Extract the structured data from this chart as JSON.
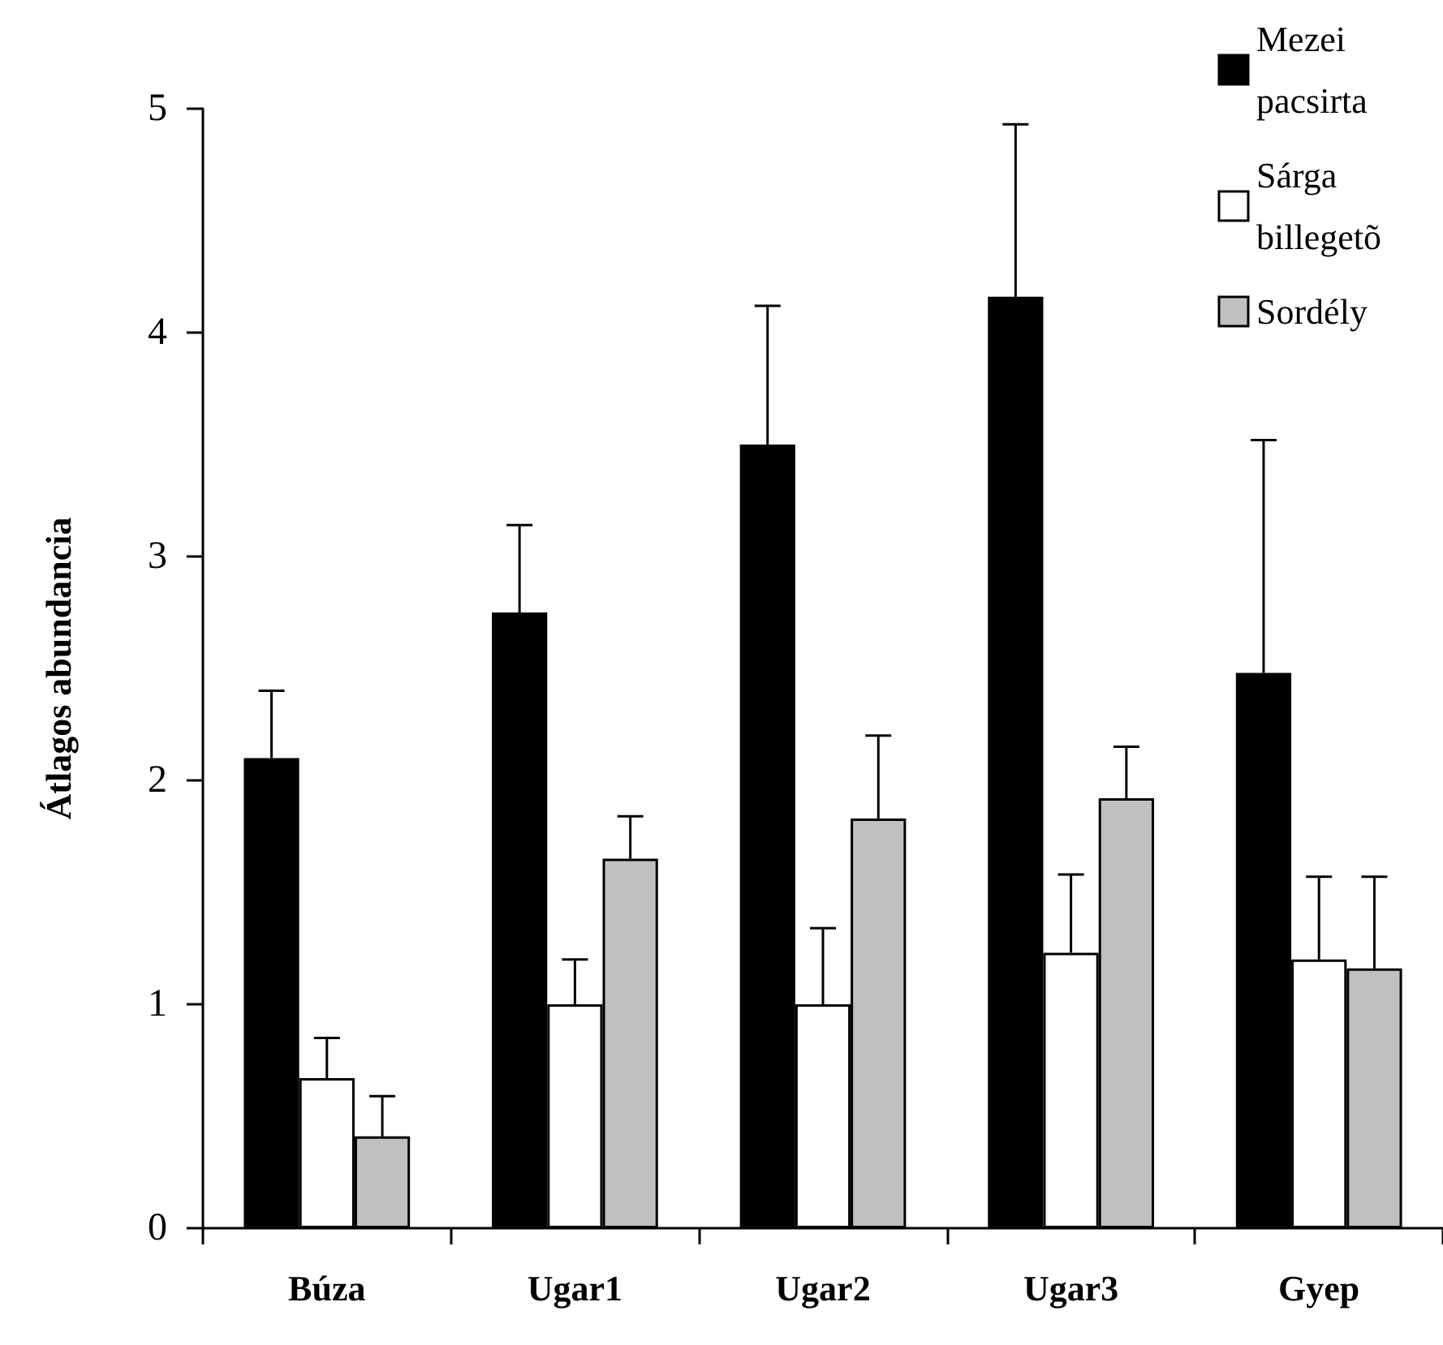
{
  "chart_data": {
    "type": "bar",
    "ylabel": "Átlagos abundancia",
    "categories": [
      "Búza",
      "Ugar1",
      "Ugar2",
      "Ugar3",
      "Gyep"
    ],
    "series": [
      {
        "name": "Mezei pacsirta",
        "color": "#000000",
        "values": [
          2.1,
          2.75,
          3.5,
          4.16,
          2.48
        ],
        "errors": [
          [
            2.1,
            2.4
          ],
          [
            2.75,
            3.14
          ],
          [
            3.5,
            4.12
          ],
          [
            4.16,
            4.93
          ],
          [
            2.48,
            3.52
          ]
        ]
      },
      {
        "name": "Sárga billegetõ",
        "color": "#ffffff",
        "values": [
          0.67,
          1.0,
          1.0,
          1.23,
          1.2
        ],
        "errors": [
          [
            0.67,
            0.85
          ],
          [
            1.0,
            1.2
          ],
          [
            1.0,
            1.34
          ],
          [
            1.23,
            1.58
          ],
          [
            1.2,
            1.57
          ]
        ]
      },
      {
        "name": "Sordély",
        "color": "#c0c0c0",
        "values": [
          0.41,
          1.65,
          1.83,
          1.92,
          1.16
        ],
        "errors": [
          [
            0.41,
            0.59
          ],
          [
            1.65,
            1.84
          ],
          [
            1.83,
            2.2
          ],
          [
            1.92,
            2.15
          ],
          [
            1.16,
            1.57
          ]
        ]
      }
    ],
    "ylim": [
      0,
      5
    ],
    "yticks": [
      0,
      1,
      2,
      3,
      4,
      5
    ],
    "grid": false,
    "legend": "top right"
  }
}
